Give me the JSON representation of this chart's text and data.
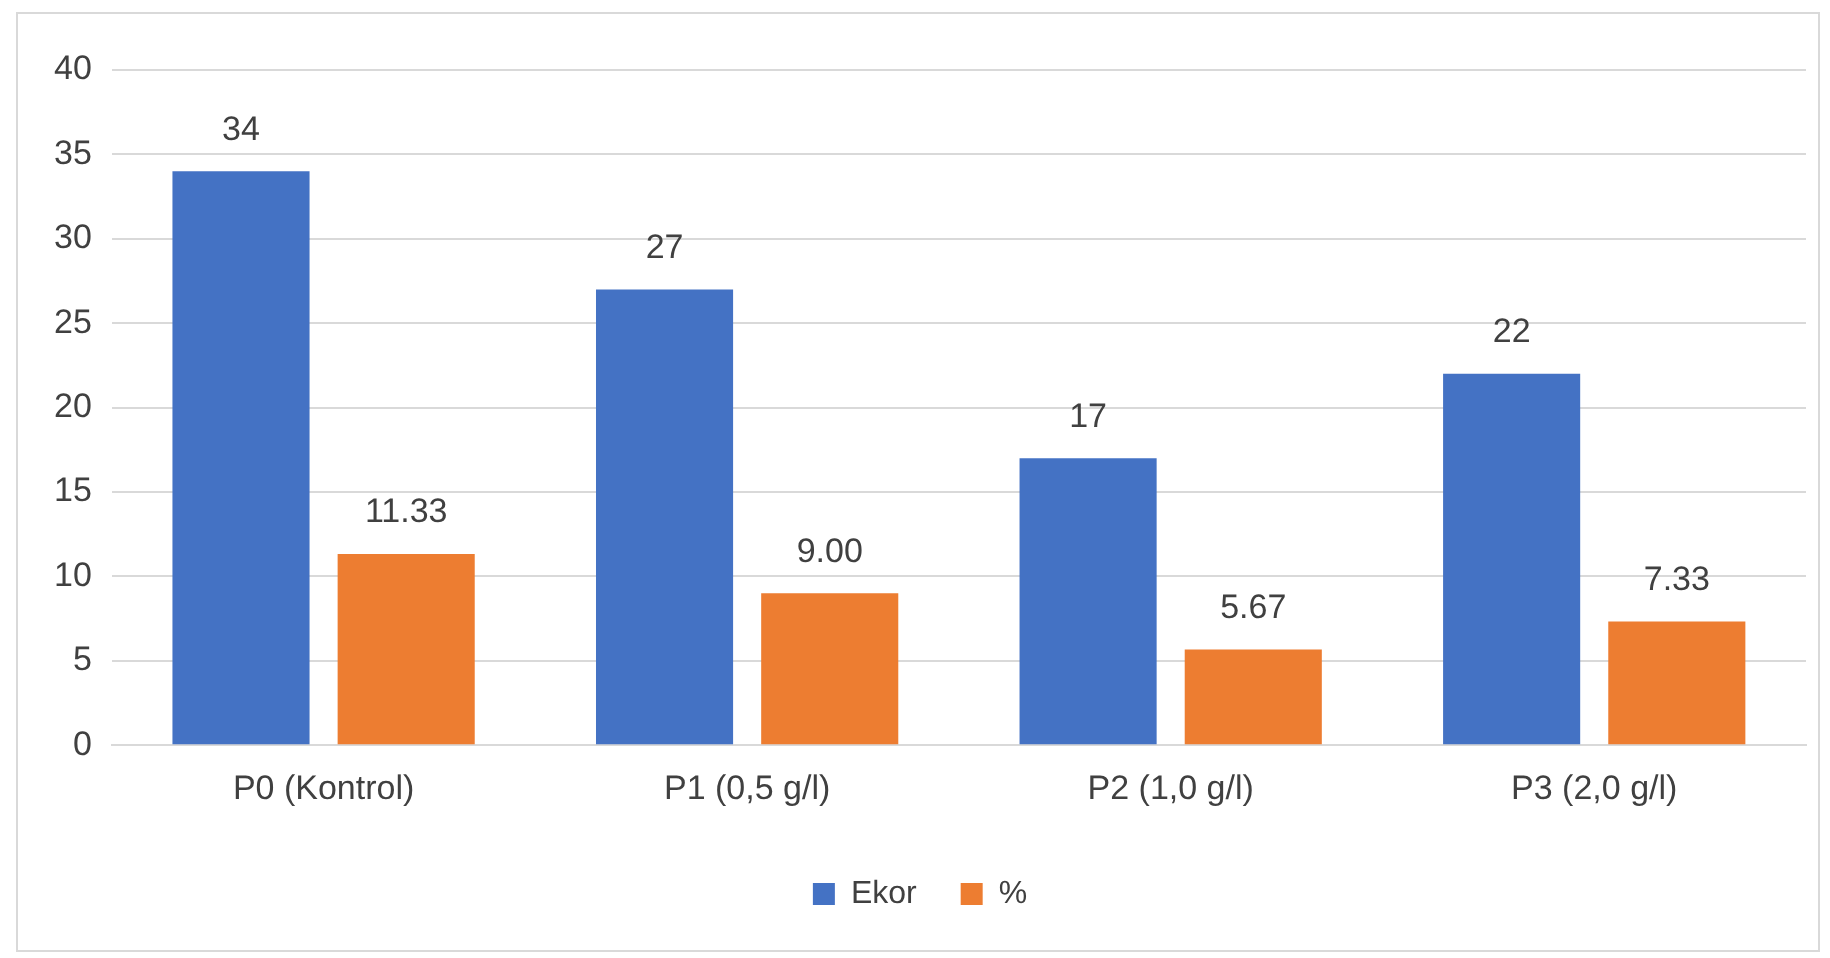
{
  "chart_data": {
    "type": "bar",
    "categories": [
      "P0 (Kontrol)",
      "P1 (0,5 g/l)",
      "P2 (1,0 g/l)",
      "P3 (2,0 g/l)"
    ],
    "series": [
      {
        "name": "Ekor",
        "color": "#4472c4",
        "values": [
          34,
          27,
          17,
          22
        ],
        "value_labels": [
          "34",
          "27",
          "17",
          "22"
        ]
      },
      {
        "name": "%",
        "color": "#ed7d31",
        "values": [
          11.33,
          9.0,
          5.67,
          7.33
        ],
        "value_labels": [
          "11.33",
          "9.00",
          "5.67",
          "7.33"
        ]
      }
    ],
    "ylim": [
      0,
      40
    ],
    "yticks": [
      0,
      5,
      10,
      15,
      20,
      25,
      30,
      35,
      40
    ],
    "grid": "y",
    "legend": "bottom"
  }
}
